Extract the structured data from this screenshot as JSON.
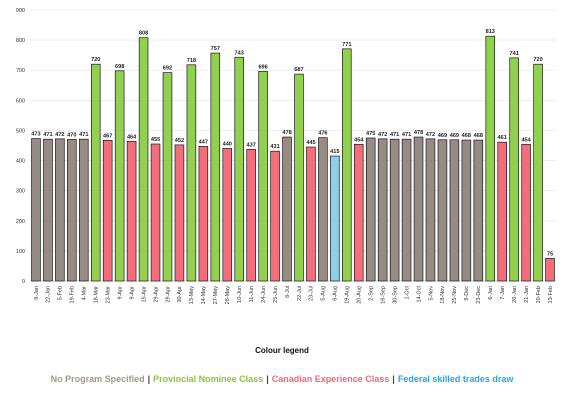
{
  "chart_data": {
    "type": "bar",
    "ylim": [
      0,
      900
    ],
    "yticks": [
      0,
      100,
      200,
      300,
      400,
      500,
      600,
      700,
      800,
      900
    ],
    "categories": [
      "8-Jan",
      "22-Jan",
      "5-Feb",
      "19-Feb",
      "4-Mar",
      "18-Mar",
      "23-Mar",
      "9-Apr",
      "9-Apr",
      "15-Apr",
      "29-Apr",
      "29-Apr",
      "30-Apr",
      "13-May",
      "14-May",
      "27-May",
      "28-May",
      "10-Jun",
      "11-Jun",
      "24-Jun",
      "25-Jun",
      "8-Jul",
      "22-Jul",
      "23-Jul",
      "5-Aug",
      "6-Aug",
      "19-Aug",
      "20-Aug",
      "2-Sep",
      "16-Sep",
      "30-Sep",
      "1-Oct",
      "14-Oct",
      "5-Nov",
      "18-Nov",
      "25-Nov",
      "9-Dec",
      "23-Dec",
      "6-Jan",
      "7-Jan",
      "20-Jan",
      "21-Jan",
      "10-Feb",
      "13-Feb"
    ],
    "values": [
      473,
      471,
      472,
      470,
      471,
      720,
      467,
      698,
      464,
      808,
      455,
      692,
      452,
      718,
      447,
      757,
      440,
      743,
      437,
      696,
      431,
      478,
      687,
      445,
      476,
      415,
      771,
      454,
      475,
      472,
      471,
      471,
      478,
      472,
      469,
      469,
      468,
      468,
      813,
      461,
      741,
      454,
      720,
      75
    ],
    "classes": [
      "np",
      "np",
      "np",
      "np",
      "np",
      "pn",
      "ce",
      "pn",
      "ce",
      "pn",
      "ce",
      "pn",
      "ce",
      "pn",
      "ce",
      "pn",
      "ce",
      "pn",
      "ce",
      "pn",
      "ce",
      "np",
      "pn",
      "ce",
      "np",
      "ft",
      "pn",
      "ce",
      "np",
      "np",
      "np",
      "np",
      "np",
      "np",
      "np",
      "np",
      "np",
      "np",
      "pn",
      "ce",
      "pn",
      "ce",
      "pn",
      "ce"
    ],
    "data_labels": [
      "473",
      "471",
      "472",
      "470",
      "471",
      "720",
      "467",
      "698",
      "464",
      "808",
      "455",
      "692",
      "452",
      "718",
      "447",
      "757",
      "440",
      "743",
      "437",
      "696",
      "431",
      "478",
      "687",
      "445",
      "476",
      "415",
      "771",
      "454",
      "475",
      "472",
      "471",
      "471",
      "478",
      "472",
      "469",
      "469",
      "468",
      "468",
      "813",
      "461",
      "741",
      "454",
      "720",
      "75"
    ],
    "class_colors": {
      "np": "#968c83",
      "pn": "#92d050",
      "ce": "#f46d7a",
      "ft": "#8dd0e8"
    },
    "grid": true,
    "legend_position": "bottom"
  },
  "legend": {
    "title": "Colour legend",
    "items": [
      {
        "label": "No Program Specified",
        "color": "#a39a8f"
      },
      {
        "label": "Provincial Nominee Class",
        "color": "#8cc63f"
      },
      {
        "label": "Canadian Experience Class",
        "color": "#f06b78"
      },
      {
        "label": "Federal skilled trades draw",
        "color": "#29a8e0"
      }
    ],
    "separator": "|"
  }
}
